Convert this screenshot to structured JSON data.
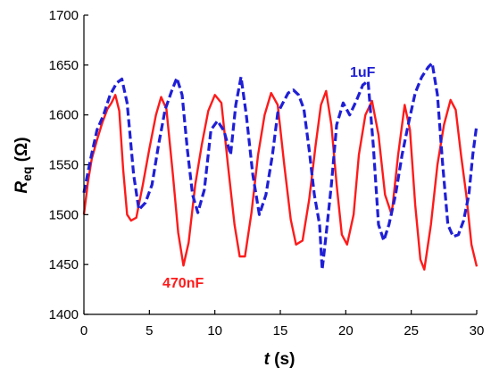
{
  "chart_data": {
    "type": "line",
    "title": "",
    "xlabel": "s",
    "xlabel_var": "t",
    "ylabel_var": "R",
    "ylabel_sub": "eq",
    "ylabel_unit": "(Ω)",
    "xlim": [
      0,
      30
    ],
    "ylim": [
      1400,
      1700
    ],
    "xticks": [
      0,
      5,
      10,
      15,
      20,
      25,
      30
    ],
    "yticks": [
      1400,
      1450,
      1500,
      1550,
      1600,
      1650,
      1700
    ],
    "grid": false,
    "legend": "none",
    "series": [
      {
        "name": "470nF",
        "color": "#ff1a1a",
        "style": "solid",
        "points": [
          [
            0,
            1500
          ],
          [
            0.3,
            1532
          ],
          [
            0.6,
            1556
          ],
          [
            1.0,
            1575
          ],
          [
            1.4,
            1592
          ],
          [
            1.8,
            1606
          ],
          [
            2.1,
            1612
          ],
          [
            2.4,
            1620
          ],
          [
            2.7,
            1604
          ],
          [
            3.0,
            1545
          ],
          [
            3.3,
            1500
          ],
          [
            3.6,
            1494
          ],
          [
            4.0,
            1497
          ],
          [
            4.5,
            1530
          ],
          [
            5.0,
            1566
          ],
          [
            5.5,
            1600
          ],
          [
            5.9,
            1618
          ],
          [
            6.3,
            1606
          ],
          [
            6.8,
            1540
          ],
          [
            7.2,
            1482
          ],
          [
            7.6,
            1449
          ],
          [
            8.0,
            1472
          ],
          [
            8.5,
            1530
          ],
          [
            9.0,
            1570
          ],
          [
            9.5,
            1604
          ],
          [
            10.0,
            1620
          ],
          [
            10.5,
            1612
          ],
          [
            11.0,
            1550
          ],
          [
            11.5,
            1490
          ],
          [
            11.9,
            1458
          ],
          [
            12.3,
            1458
          ],
          [
            12.8,
            1502
          ],
          [
            13.3,
            1560
          ],
          [
            13.8,
            1600
          ],
          [
            14.3,
            1622
          ],
          [
            14.8,
            1610
          ],
          [
            15.3,
            1550
          ],
          [
            15.8,
            1495
          ],
          [
            16.2,
            1470
          ],
          [
            16.7,
            1474
          ],
          [
            17.2,
            1515
          ],
          [
            17.7,
            1570
          ],
          [
            18.1,
            1610
          ],
          [
            18.5,
            1624
          ],
          [
            18.9,
            1590
          ],
          [
            19.3,
            1530
          ],
          [
            19.7,
            1480
          ],
          [
            20.1,
            1470
          ],
          [
            20.6,
            1500
          ],
          [
            21.0,
            1560
          ],
          [
            21.5,
            1600
          ],
          [
            22.0,
            1614
          ],
          [
            22.5,
            1580
          ],
          [
            23.0,
            1520
          ],
          [
            23.5,
            1500
          ],
          [
            24.0,
            1560
          ],
          [
            24.5,
            1610
          ],
          [
            24.9,
            1585
          ],
          [
            25.3,
            1510
          ],
          [
            25.7,
            1455
          ],
          [
            26.0,
            1445
          ],
          [
            26.5,
            1490
          ],
          [
            27.0,
            1550
          ],
          [
            27.5,
            1590
          ],
          [
            28.0,
            1615
          ],
          [
            28.4,
            1605
          ],
          [
            28.8,
            1560
          ],
          [
            29.2,
            1520
          ],
          [
            29.6,
            1470
          ],
          [
            30.0,
            1448
          ]
        ]
      },
      {
        "name": "1uF",
        "color": "#1f1fd6",
        "style": "dashed",
        "points": [
          [
            0,
            1522
          ],
          [
            0.5,
            1555
          ],
          [
            1.0,
            1585
          ],
          [
            1.5,
            1600
          ],
          [
            2.0,
            1620
          ],
          [
            2.5,
            1632
          ],
          [
            2.9,
            1636
          ],
          [
            3.3,
            1612
          ],
          [
            3.8,
            1540
          ],
          [
            4.2,
            1505
          ],
          [
            4.7,
            1512
          ],
          [
            5.2,
            1530
          ],
          [
            5.7,
            1570
          ],
          [
            6.2,
            1605
          ],
          [
            6.7,
            1624
          ],
          [
            7.1,
            1637
          ],
          [
            7.5,
            1620
          ],
          [
            7.9,
            1565
          ],
          [
            8.3,
            1520
          ],
          [
            8.7,
            1502
          ],
          [
            9.2,
            1525
          ],
          [
            9.7,
            1585
          ],
          [
            10.2,
            1594
          ],
          [
            10.7,
            1584
          ],
          [
            11.2,
            1560
          ],
          [
            11.6,
            1610
          ],
          [
            12.0,
            1638
          ],
          [
            12.4,
            1600
          ],
          [
            12.9,
            1540
          ],
          [
            13.4,
            1500
          ],
          [
            13.9,
            1520
          ],
          [
            14.4,
            1560
          ],
          [
            14.8,
            1602
          ],
          [
            15.2,
            1612
          ],
          [
            15.6,
            1622
          ],
          [
            16.0,
            1625
          ],
          [
            16.4,
            1620
          ],
          [
            16.8,
            1606
          ],
          [
            17.2,
            1565
          ],
          [
            17.6,
            1520
          ],
          [
            18.0,
            1490
          ],
          [
            18.2,
            1445
          ],
          [
            18.5,
            1480
          ],
          [
            18.9,
            1530
          ],
          [
            19.3,
            1590
          ],
          [
            19.8,
            1612
          ],
          [
            20.3,
            1600
          ],
          [
            20.8,
            1614
          ],
          [
            21.3,
            1630
          ],
          [
            21.7,
            1634
          ],
          [
            22.1,
            1570
          ],
          [
            22.5,
            1490
          ],
          [
            22.9,
            1474
          ],
          [
            23.3,
            1490
          ],
          [
            23.8,
            1520
          ],
          [
            24.3,
            1560
          ],
          [
            24.8,
            1592
          ],
          [
            25.3,
            1622
          ],
          [
            25.8,
            1638
          ],
          [
            26.3,
            1648
          ],
          [
            26.6,
            1652
          ],
          [
            27.0,
            1620
          ],
          [
            27.4,
            1550
          ],
          [
            27.8,
            1490
          ],
          [
            28.2,
            1478
          ],
          [
            28.6,
            1480
          ],
          [
            29.0,
            1494
          ],
          [
            29.4,
            1520
          ],
          [
            29.7,
            1560
          ],
          [
            30.0,
            1590
          ]
        ]
      }
    ]
  }
}
